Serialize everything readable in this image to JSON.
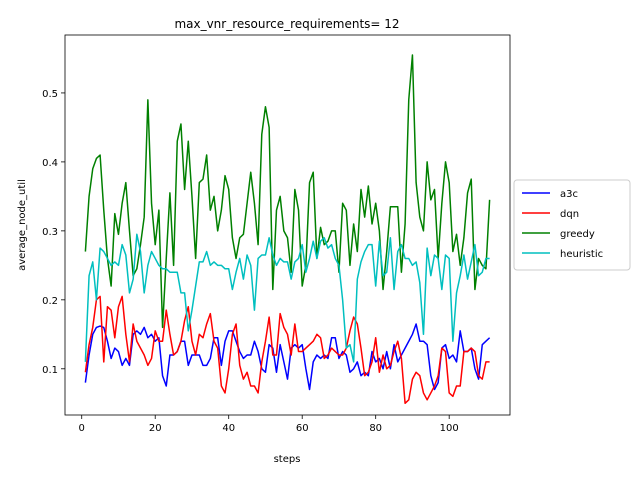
{
  "chart_data": {
    "type": "line",
    "title": "max_vnr_resource_requirements= 12",
    "x_label": "steps",
    "y_label": "average_node_util",
    "x": [
      1,
      2,
      3,
      4,
      5,
      6,
      7,
      8,
      9,
      10,
      11,
      12,
      13,
      14,
      15,
      16,
      17,
      18,
      19,
      20,
      21,
      22,
      23,
      24,
      25,
      26,
      27,
      28,
      29,
      30,
      31,
      32,
      33,
      34,
      35,
      36,
      37,
      38,
      39,
      40,
      41,
      42,
      43,
      44,
      45,
      46,
      47,
      48,
      49,
      50,
      51,
      52,
      53,
      54,
      55,
      56,
      57,
      58,
      59,
      60,
      61,
      62,
      63,
      64,
      65,
      66,
      67,
      68,
      69,
      70,
      71,
      72,
      73,
      74,
      75,
      76,
      77,
      78,
      79,
      80,
      81,
      82,
      83,
      84,
      85,
      86,
      87,
      88,
      89,
      90,
      91,
      92,
      93,
      94,
      95,
      96,
      97,
      98,
      99,
      100,
      101,
      102,
      103,
      104,
      105,
      106,
      107,
      108,
      109,
      110,
      111
    ],
    "series": [
      {
        "name": "a3c",
        "color": "#0000ff",
        "values": [
          0.08,
          0.12,
          0.15,
          0.16,
          0.162,
          0.16,
          0.14,
          0.115,
          0.13,
          0.125,
          0.105,
          0.115,
          0.105,
          0.15,
          0.155,
          0.15,
          0.16,
          0.145,
          0.15,
          0.14,
          0.145,
          0.09,
          0.075,
          0.12,
          0.12,
          0.125,
          0.14,
          0.14,
          0.105,
          0.12,
          0.12,
          0.12,
          0.105,
          0.105,
          0.115,
          0.145,
          0.145,
          0.105,
          0.14,
          0.155,
          0.155,
          0.14,
          0.125,
          0.115,
          0.12,
          0.12,
          0.14,
          0.125,
          0.1,
          0.095,
          0.135,
          0.13,
          0.095,
          0.135,
          0.11,
          0.085,
          0.13,
          0.135,
          0.13,
          0.135,
          0.1,
          0.07,
          0.11,
          0.12,
          0.115,
          0.12,
          0.115,
          0.145,
          0.145,
          0.115,
          0.125,
          0.12,
          0.095,
          0.1,
          0.11,
          0.09,
          0.095,
          0.09,
          0.125,
          0.11,
          0.115,
          0.1,
          0.125,
          0.1,
          0.135,
          0.11,
          0.12,
          0.13,
          0.14,
          0.15,
          0.165,
          0.14,
          0.14,
          0.135,
          0.09,
          0.07,
          0.08,
          0.13,
          0.135,
          0.115,
          0.12,
          0.11,
          0.155,
          0.125,
          0.125,
          0.13,
          0.1,
          0.085,
          0.135,
          0.14,
          0.145
        ]
      },
      {
        "name": "dqn",
        "color": "#ff0000",
        "values": [
          0.095,
          0.135,
          0.16,
          0.2,
          0.205,
          0.11,
          0.19,
          0.185,
          0.145,
          0.19,
          0.205,
          0.15,
          0.11,
          0.165,
          0.14,
          0.13,
          0.12,
          0.105,
          0.115,
          0.155,
          0.14,
          0.14,
          0.185,
          0.15,
          0.12,
          0.125,
          0.14,
          0.17,
          0.19,
          0.14,
          0.12,
          0.15,
          0.145,
          0.165,
          0.18,
          0.14,
          0.13,
          0.075,
          0.065,
          0.1,
          0.15,
          0.165,
          0.105,
          0.085,
          0.095,
          0.075,
          0.075,
          0.065,
          0.11,
          0.14,
          0.175,
          0.12,
          0.12,
          0.18,
          0.16,
          0.15,
          0.12,
          0.165,
          0.125,
          0.125,
          0.13,
          0.135,
          0.14,
          0.15,
          0.145,
          0.115,
          0.12,
          0.13,
          0.125,
          0.12,
          0.12,
          0.13,
          0.155,
          0.175,
          0.165,
          0.13,
          0.09,
          0.095,
          0.11,
          0.145,
          0.095,
          0.12,
          0.1,
          0.105,
          0.125,
          0.14,
          0.115,
          0.05,
          0.055,
          0.085,
          0.095,
          0.09,
          0.065,
          0.055,
          0.065,
          0.075,
          0.09,
          0.13,
          0.125,
          0.065,
          0.06,
          0.075,
          0.075,
          0.125,
          0.125,
          0.13,
          0.125,
          0.09,
          0.085,
          0.11,
          0.11
        ]
      },
      {
        "name": "greedy",
        "color": "#008000",
        "values": [
          0.27,
          0.35,
          0.39,
          0.405,
          0.41,
          0.33,
          0.26,
          0.22,
          0.325,
          0.295,
          0.34,
          0.37,
          0.3,
          0.235,
          0.245,
          0.28,
          0.32,
          0.49,
          0.34,
          0.28,
          0.33,
          0.16,
          0.26,
          0.355,
          0.25,
          0.43,
          0.455,
          0.36,
          0.43,
          0.35,
          0.26,
          0.37,
          0.375,
          0.41,
          0.33,
          0.35,
          0.3,
          0.33,
          0.38,
          0.36,
          0.29,
          0.26,
          0.29,
          0.295,
          0.34,
          0.385,
          0.34,
          0.28,
          0.44,
          0.48,
          0.45,
          0.215,
          0.33,
          0.35,
          0.3,
          0.29,
          0.24,
          0.36,
          0.33,
          0.22,
          0.25,
          0.37,
          0.385,
          0.26,
          0.305,
          0.28,
          0.285,
          0.3,
          0.3,
          0.24,
          0.34,
          0.33,
          0.25,
          0.31,
          0.27,
          0.36,
          0.32,
          0.365,
          0.31,
          0.34,
          0.3,
          0.215,
          0.27,
          0.335,
          0.335,
          0.335,
          0.24,
          0.31,
          0.49,
          0.555,
          0.37,
          0.32,
          0.3,
          0.4,
          0.345,
          0.36,
          0.26,
          0.34,
          0.4,
          0.37,
          0.27,
          0.295,
          0.25,
          0.29,
          0.355,
          0.375,
          0.215,
          0.26,
          0.25,
          0.245,
          0.345
        ]
      },
      {
        "name": "heuristic",
        "color": "#00bfbf",
        "values": [
          0.11,
          0.235,
          0.255,
          0.2,
          0.275,
          0.27,
          0.26,
          0.25,
          0.255,
          0.25,
          0.28,
          0.265,
          0.21,
          0.23,
          0.295,
          0.27,
          0.21,
          0.25,
          0.27,
          0.26,
          0.25,
          0.245,
          0.245,
          0.24,
          0.24,
          0.24,
          0.21,
          0.21,
          0.155,
          0.185,
          0.22,
          0.255,
          0.255,
          0.27,
          0.25,
          0.255,
          0.25,
          0.25,
          0.245,
          0.245,
          0.215,
          0.24,
          0.26,
          0.23,
          0.265,
          0.25,
          0.185,
          0.26,
          0.265,
          0.265,
          0.29,
          0.265,
          0.25,
          0.26,
          0.255,
          0.255,
          0.23,
          0.255,
          0.26,
          0.28,
          0.24,
          0.26,
          0.285,
          0.26,
          0.285,
          0.29,
          0.275,
          0.28,
          0.26,
          0.25,
          0.2,
          0.13,
          0.135,
          0.11,
          0.23,
          0.255,
          0.27,
          0.28,
          0.28,
          0.22,
          0.285,
          0.235,
          0.24,
          0.29,
          0.215,
          0.27,
          0.28,
          0.26,
          0.26,
          0.25,
          0.255,
          0.225,
          0.15,
          0.275,
          0.235,
          0.265,
          0.26,
          0.215,
          0.265,
          0.26,
          0.14,
          0.21,
          0.235,
          0.265,
          0.23,
          0.255,
          0.28,
          0.235,
          0.24,
          0.26,
          0.26
        ]
      }
    ],
    "xlim": [
      -4.55,
      116.55
    ],
    "ylim": [
      0.033,
      0.584
    ],
    "xticks": [
      0,
      20,
      40,
      60,
      80,
      100
    ],
    "yticks": [
      0.1,
      0.2,
      0.3,
      0.4,
      0.5
    ],
    "legend": "right"
  }
}
